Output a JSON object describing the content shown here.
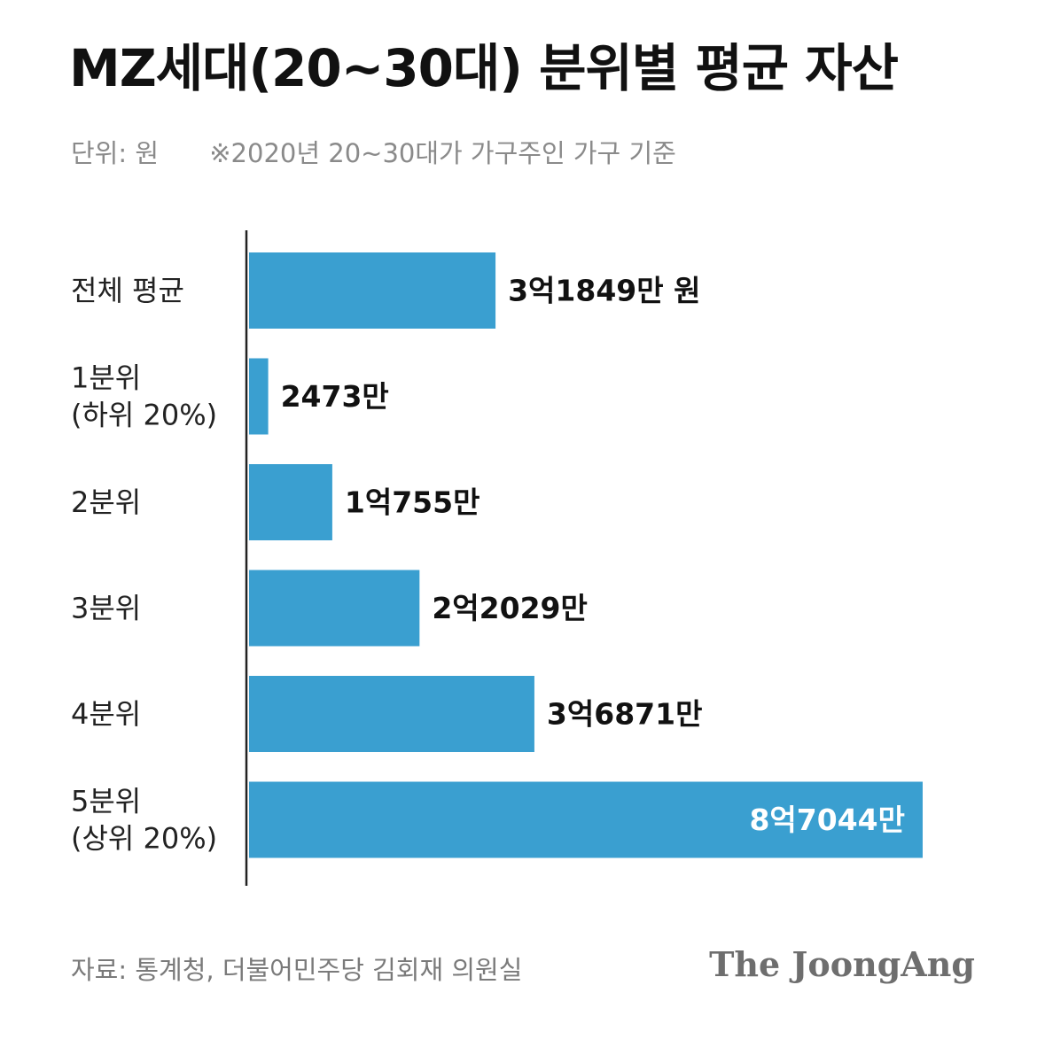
{
  "chart_data": {
    "type": "bar",
    "orientation": "horizontal",
    "title": "MZ세대(20~30대) 분위별 평균 자산",
    "unit_label": "단위: 원",
    "note": "※2020년 20~30대가 가구주인 가구 기준",
    "categories": [
      [
        "전체 평균"
      ],
      [
        "1분위",
        "(하위 20%)"
      ],
      [
        "2분위"
      ],
      [
        "3분위"
      ],
      [
        "4분위"
      ],
      [
        "5분위",
        "(상위 20%)"
      ]
    ],
    "values": [
      31849,
      2473,
      10755,
      22029,
      36871,
      87044
    ],
    "value_unit": "만 원",
    "data_labels": [
      "3억1849만 원",
      "2473만",
      "1억755만",
      "2억2029만",
      "3억6871만",
      "8억7044만"
    ],
    "xlim": [
      0,
      87044
    ],
    "grid": false,
    "bar_color": "#3a9fd0",
    "label_inside_color": "#ffffff",
    "label_outside_color": "#111111"
  },
  "footer": {
    "source": "자료: 통계청, 더불어민주당 김회재 의원실",
    "brand": "The JoongAng"
  }
}
